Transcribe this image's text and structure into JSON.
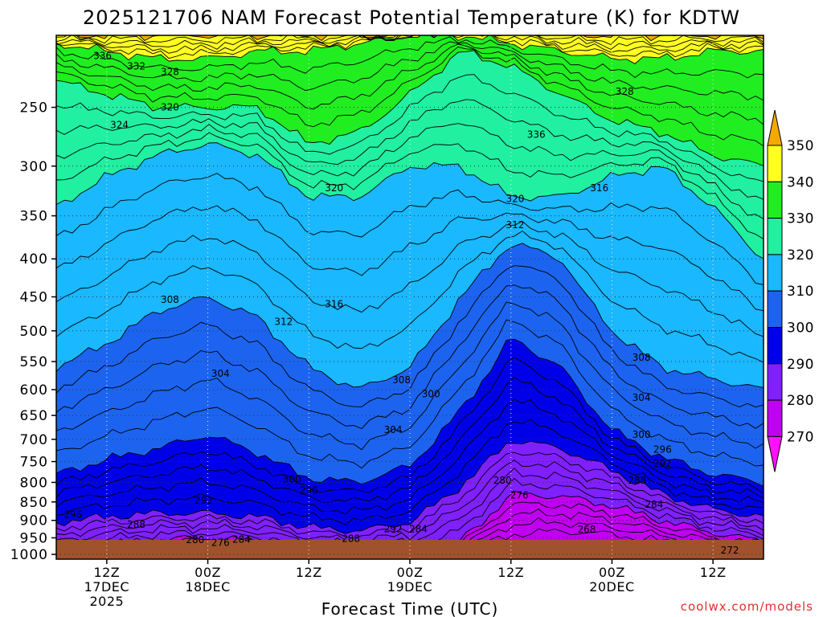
{
  "title": "2025121706 NAM Forecast Potential Temperature (K) for KDTW",
  "credit": "coolwx.com/models",
  "chart_data": {
    "type": "heatmap",
    "subtype": "time-height filled contour cross-section",
    "title": "2025121706 NAM Forecast Potential Temperature (K) for KDTW",
    "xlabel": "Forecast Time (UTC)",
    "ylabel": "",
    "x_ticks": [
      {
        "hour": 6,
        "lines": [
          "12Z",
          "17DEC",
          "2025"
        ]
      },
      {
        "hour": 18,
        "lines": [
          "00Z",
          "18DEC"
        ]
      },
      {
        "hour": 30,
        "lines": [
          "12Z"
        ]
      },
      {
        "hour": 42,
        "lines": [
          "00Z",
          "19DEC"
        ]
      },
      {
        "hour": 54,
        "lines": [
          "12Z"
        ]
      },
      {
        "hour": 66,
        "lines": [
          "00Z",
          "20DEC"
        ]
      },
      {
        "hour": 78,
        "lines": [
          "12Z"
        ]
      }
    ],
    "xlim_hours": [
      0,
      84
    ],
    "y_ticks": [
      250,
      300,
      350,
      400,
      450,
      500,
      550,
      600,
      650,
      700,
      750,
      800,
      850,
      900,
      950,
      1000
    ],
    "ylim_hpa": [
      200,
      1015
    ],
    "y_scale": "log-pressure (inverted)",
    "grid": "dotted at ticks",
    "colorbar": {
      "ticks": [
        270,
        280,
        290,
        300,
        310,
        320,
        330,
        340,
        350
      ],
      "colors": [
        "#ff10ff",
        "#c000f0",
        "#8020ff",
        "#0000e8",
        "#1c64f0",
        "#19b8ff",
        "#20f0a0",
        "#20ee20",
        "#ffff20",
        "#f4a800"
      ],
      "placement": "right"
    },
    "ground_color": "#a0522d",
    "contour_interval_K": 2,
    "contour_labels": [
      {
        "t": 5.5,
        "p": 213,
        "v": "336"
      },
      {
        "t": 9.5,
        "p": 220,
        "v": "332"
      },
      {
        "t": 13.5,
        "p": 224,
        "v": "328"
      },
      {
        "t": 13.5,
        "p": 250,
        "v": "320"
      },
      {
        "t": 7.5,
        "p": 264,
        "v": "324"
      },
      {
        "t": 33,
        "p": 321,
        "v": "320"
      },
      {
        "t": 57,
        "p": 272,
        "v": "336"
      },
      {
        "t": 67.5,
        "p": 238,
        "v": "328"
      },
      {
        "t": 54.5,
        "p": 332,
        "v": "320"
      },
      {
        "t": 64.5,
        "p": 321,
        "v": "316"
      },
      {
        "t": 54.5,
        "p": 360,
        "v": "312"
      },
      {
        "t": 13.5,
        "p": 454,
        "v": "308"
      },
      {
        "t": 27,
        "p": 486,
        "v": "312"
      },
      {
        "t": 33,
        "p": 460,
        "v": "316"
      },
      {
        "t": 19.5,
        "p": 571,
        "v": "304"
      },
      {
        "t": 41,
        "p": 582,
        "v": "308"
      },
      {
        "t": 44.5,
        "p": 608,
        "v": "300"
      },
      {
        "t": 40,
        "p": 680,
        "v": "304"
      },
      {
        "t": 69.5,
        "p": 543,
        "v": "308"
      },
      {
        "t": 69.5,
        "p": 615,
        "v": "304"
      },
      {
        "t": 69.5,
        "p": 690,
        "v": "300"
      },
      {
        "t": 72,
        "p": 722,
        "v": "296"
      },
      {
        "t": 72,
        "p": 755,
        "v": "292"
      },
      {
        "t": 28,
        "p": 792,
        "v": "300"
      },
      {
        "t": 30,
        "p": 820,
        "v": "296"
      },
      {
        "t": 17.5,
        "p": 846,
        "v": "292"
      },
      {
        "t": 2,
        "p": 884,
        "v": "296"
      },
      {
        "t": 9.5,
        "p": 912,
        "v": "288"
      },
      {
        "t": 40,
        "p": 925,
        "v": "292"
      },
      {
        "t": 43,
        "p": 925,
        "v": "284"
      },
      {
        "t": 53,
        "p": 795,
        "v": "280"
      },
      {
        "t": 55,
        "p": 833,
        "v": "276"
      },
      {
        "t": 69,
        "p": 795,
        "v": "288"
      },
      {
        "t": 71,
        "p": 857,
        "v": "284"
      },
      {
        "t": 63,
        "p": 926,
        "v": "268"
      },
      {
        "t": 35,
        "p": 953,
        "v": "288"
      },
      {
        "t": 16.5,
        "p": 956,
        "v": "280"
      },
      {
        "t": 19.5,
        "p": 965,
        "v": "276"
      },
      {
        "t": 22,
        "p": 955,
        "v": "284"
      },
      {
        "t": 80,
        "p": 988,
        "v": "272"
      }
    ]
  }
}
